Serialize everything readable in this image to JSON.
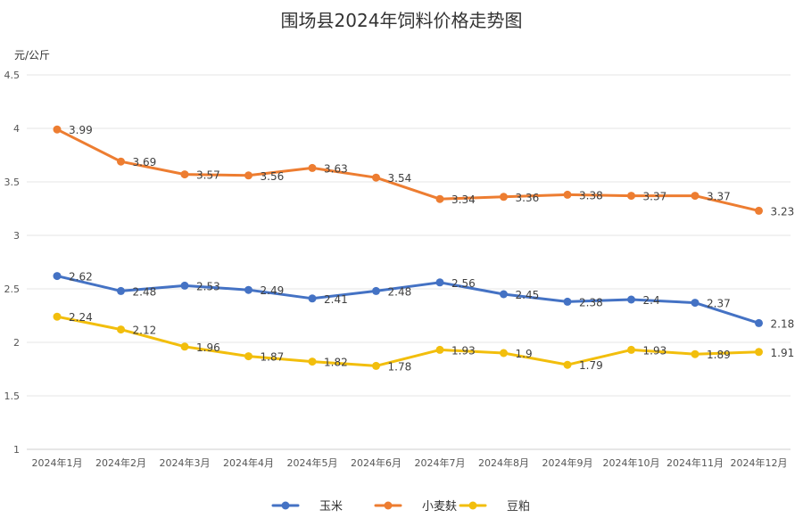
{
  "chart_data": {
    "type": "line",
    "title": "围场县2024年饲料价格走势图",
    "ylabel": "元/公斤",
    "xlabel": "",
    "ylim": [
      1,
      4.5
    ],
    "yticks": [
      "1",
      "1.5",
      "2",
      "2.5",
      "3",
      "3.5",
      "4",
      "4.5"
    ],
    "ytick_values": [
      1,
      1.5,
      2,
      2.5,
      3,
      3.5,
      4,
      4.5
    ],
    "categories": [
      "2024年1月",
      "2024年2月",
      "2024年3月",
      "2024年4月",
      "2024年5月",
      "2024年6月",
      "2024年7月",
      "2024年8月",
      "2024年9月",
      "2024年10月",
      "2024年11月",
      "2024年12月"
    ],
    "grid": true,
    "legend_position": "bottom",
    "series": [
      {
        "name": "玉米",
        "color": "#4472C4",
        "values": [
          2.62,
          2.48,
          2.53,
          2.49,
          2.41,
          2.48,
          2.56,
          2.45,
          2.38,
          2.4,
          2.37,
          2.18
        ],
        "labels": [
          "2.62",
          "2.48",
          "2.53",
          "2.49",
          "2.41",
          "2.48",
          "2.56",
          "2.45",
          "2.38",
          "2.4",
          "2.37",
          "2.18"
        ]
      },
      {
        "name": "小麦麸",
        "color": "#ED7D31",
        "values": [
          3.99,
          3.69,
          3.57,
          3.56,
          3.63,
          3.54,
          3.34,
          3.36,
          3.38,
          3.37,
          3.37,
          3.23
        ],
        "labels": [
          "3.99",
          "3.69",
          "3.57",
          "3.56",
          "3.63",
          "3.54",
          "3.34",
          "3.36",
          "3.38",
          "3.37",
          "3.37",
          "3.23"
        ]
      },
      {
        "name": "豆粕",
        "color": "#F2BE0C",
        "values": [
          2.24,
          2.12,
          1.96,
          1.87,
          1.82,
          1.78,
          1.93,
          1.9,
          1.79,
          1.93,
          1.89,
          1.91
        ],
        "labels": [
          "2.24",
          "2.12",
          "1.96",
          "1.87",
          "1.82",
          "1.78",
          "1.93",
          "1.9",
          "1.79",
          "1.93",
          "1.89",
          "1.91"
        ]
      }
    ]
  }
}
